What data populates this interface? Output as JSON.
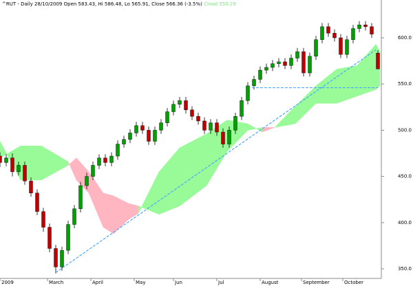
{
  "chart_data": {
    "type": "candlestick",
    "title": "^RUT - Daily 28/10/2009 Open 583.43, Hi 586.48, Lo 565.91, Close 566.36 (-3.5%)",
    "cloud_label": "Cloud 550.29",
    "up_color": "#00a000",
    "down_color": "#c00000",
    "x": [
      0,
      3,
      6,
      9,
      12,
      15,
      18,
      21,
      24,
      27,
      30,
      33,
      36,
      39,
      42,
      45,
      48,
      51,
      54,
      57,
      60,
      63,
      66,
      69,
      72,
      75,
      78,
      81,
      84,
      87,
      90,
      93,
      96,
      99,
      102,
      105,
      108,
      111,
      114,
      117,
      120,
      123,
      126,
      129,
      132,
      135,
      138,
      141,
      144,
      147,
      150,
      153,
      156,
      159,
      162,
      165,
      168,
      171,
      174,
      177,
      180,
      183
    ],
    "open": [
      472,
      465,
      470,
      455,
      462,
      445,
      432,
      412,
      395,
      372,
      352,
      370,
      398,
      415,
      440,
      450,
      462,
      470,
      465,
      472,
      485,
      490,
      497,
      505,
      500,
      488,
      500,
      508,
      520,
      528,
      532,
      522,
      515,
      510,
      500,
      508,
      498,
      485,
      500,
      515,
      532,
      548,
      555,
      565,
      568,
      572,
      574,
      570,
      578,
      585,
      562,
      580,
      598,
      612,
      605,
      600,
      582,
      598,
      610,
      614,
      612,
      583.43
    ],
    "high": [
      476,
      474,
      475,
      466,
      466,
      449,
      436,
      416,
      399,
      376,
      374,
      402,
      419,
      444,
      454,
      466,
      474,
      474,
      476,
      489,
      494,
      501,
      509,
      509,
      504,
      504,
      512,
      524,
      532,
      536,
      536,
      526,
      519,
      514,
      512,
      512,
      502,
      504,
      519,
      536,
      552,
      559,
      569,
      572,
      576,
      578,
      578,
      582,
      589,
      589,
      584,
      602,
      616,
      616,
      609,
      604,
      602,
      614,
      618,
      618,
      616,
      586.48
    ],
    "low": [
      460,
      461,
      450,
      451,
      441,
      428,
      408,
      390,
      368,
      345,
      348,
      366,
      394,
      411,
      436,
      446,
      458,
      461,
      461,
      468,
      481,
      486,
      493,
      496,
      484,
      484,
      496,
      504,
      516,
      524,
      518,
      511,
      506,
      496,
      496,
      494,
      481,
      481,
      496,
      511,
      528,
      544,
      551,
      561,
      564,
      568,
      566,
      566,
      574,
      558,
      558,
      576,
      594,
      601,
      596,
      578,
      578,
      594,
      606,
      608,
      600,
      565.91
    ],
    "close": [
      465,
      470,
      455,
      462,
      445,
      432,
      412,
      395,
      372,
      352,
      370,
      398,
      415,
      440,
      450,
      462,
      470,
      465,
      472,
      485,
      490,
      497,
      505,
      500,
      488,
      500,
      508,
      520,
      528,
      532,
      522,
      515,
      510,
      500,
      508,
      498,
      485,
      500,
      515,
      532,
      548,
      555,
      565,
      568,
      572,
      574,
      570,
      578,
      585,
      562,
      580,
      598,
      612,
      605,
      600,
      582,
      598,
      610,
      614,
      612,
      604,
      566.36
    ],
    "cloud": {
      "x": [
        0,
        10,
        20,
        33,
        37,
        43,
        50,
        55,
        62,
        67,
        77,
        87,
        100,
        110,
        120,
        127,
        133,
        143,
        153,
        163,
        173,
        182,
        184
      ],
      "span_a": [
        470,
        483,
        483,
        466,
        446,
        432,
        395,
        388,
        403,
        410,
        455,
        481,
        496,
        511,
        507,
        498,
        503,
        526,
        548,
        566,
        570,
        593,
        585
      ],
      "span_b": [
        488,
        446,
        446,
        462,
        470,
        455,
        432,
        429,
        421,
        418,
        409,
        418,
        440,
        477,
        500,
        503,
        503,
        507,
        529,
        529,
        537,
        544,
        548
      ],
      "up_color": "#98fb98",
      "down_color": "#ffb6c1"
    },
    "trendline": {
      "x": [
        27,
        182
      ],
      "values": [
        346,
        587
      ],
      "color": "#4da6ff"
    },
    "support": {
      "x": [
        122,
        183
      ],
      "values": [
        546,
        546
      ],
      "color": "#4da6ff"
    },
    "xlim": [
      0,
      184
    ],
    "xticks": [
      {
        "value": 0,
        "label": "2009"
      },
      {
        "value": 23,
        "label": "March"
      },
      {
        "value": 44,
        "label": "April"
      },
      {
        "value": 65,
        "label": "May"
      },
      {
        "value": 84,
        "label": "Jun"
      },
      {
        "value": 105,
        "label": "Jul"
      },
      {
        "value": 126,
        "label": "August"
      },
      {
        "value": 146,
        "label": "September"
      },
      {
        "value": 166,
        "label": "October"
      }
    ],
    "ylim": [
      339.6,
      640.9
    ],
    "yticks": [
      {
        "value": 350,
        "label": "350.0"
      },
      {
        "value": 400,
        "label": "400.0"
      },
      {
        "value": 450,
        "label": "450.0"
      },
      {
        "value": 500,
        "label": "500.0"
      },
      {
        "value": 550,
        "label": "550.0"
      },
      {
        "value": 600,
        "label": "600.0"
      }
    ],
    "grid": false
  }
}
